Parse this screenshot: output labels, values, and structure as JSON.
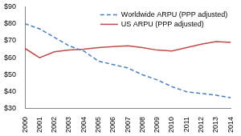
{
  "chart_data": {
    "type": "line",
    "categories": [
      "2000",
      "2001",
      "2002",
      "2003",
      "2004",
      "2005",
      "2006",
      "2007",
      "2008",
      "2009",
      "2010",
      "2011",
      "2012",
      "2013",
      "2014"
    ],
    "series": [
      {
        "name": "Worldwide ARPU (PPP adjusted)",
        "color": "#4a7ebb",
        "line_style": "dashed",
        "marker": "none",
        "values": [
          80,
          77,
          72,
          67,
          64,
          58,
          56,
          54,
          50,
          47,
          43,
          40,
          39,
          38,
          36.5
        ]
      },
      {
        "name": "US ARPU (PPP adjusted)",
        "color": "#be4b48",
        "line_style": "solid",
        "marker": "none",
        "values": [
          65.5,
          60,
          63.5,
          64.5,
          65,
          66,
          66.5,
          67,
          66,
          64.5,
          64,
          66,
          68,
          69.5,
          69
        ]
      }
    ],
    "ylim": [
      30,
      90
    ],
    "yticks": [
      {
        "value": 30,
        "label": "$30"
      },
      {
        "value": 40,
        "label": "$40"
      },
      {
        "value": 50,
        "label": "$50"
      },
      {
        "value": 60,
        "label": "$60"
      },
      {
        "value": 70,
        "label": "$70"
      },
      {
        "value": 80,
        "label": "$80"
      },
      {
        "value": 90,
        "label": "$90"
      }
    ],
    "grid": false,
    "legend": "top-right"
  }
}
